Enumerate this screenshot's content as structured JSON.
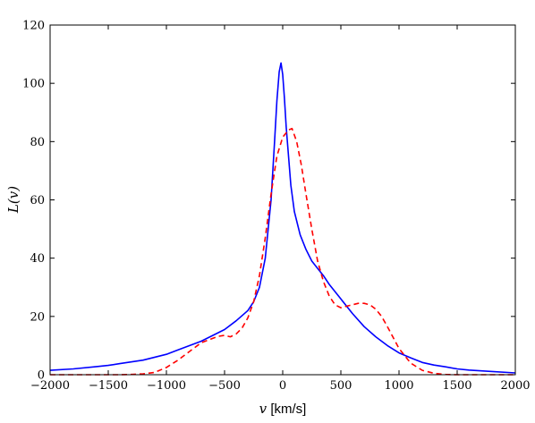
{
  "chart_data": {
    "type": "line",
    "xlabel": "v [km/s]",
    "xlabel_var": "v",
    "xlabel_unit": " [km/s]",
    "ylabel": "L(v)",
    "xlim": [
      -2000,
      2000
    ],
    "ylim": [
      0,
      120
    ],
    "xticks": [
      -2000,
      -1500,
      -1000,
      -500,
      0,
      500,
      1000,
      1500,
      2000
    ],
    "xtick_labels": [
      "−2000",
      "−1500",
      "−1000",
      "−500",
      "0",
      "500",
      "1000",
      "1500",
      "2000"
    ],
    "yticks": [
      0,
      20,
      40,
      60,
      80,
      100,
      120
    ],
    "ytick_labels": [
      "0",
      "20",
      "40",
      "60",
      "80",
      "100",
      "120"
    ],
    "grid": false,
    "legend": "none",
    "series": [
      {
        "color": "#0000ff",
        "dash": "solid",
        "x": [
          -2000,
          -1800,
          -1600,
          -1500,
          -1400,
          -1200,
          -1000,
          -900,
          -800,
          -700,
          -600,
          -500,
          -400,
          -300,
          -250,
          -200,
          -150,
          -100,
          -70,
          -50,
          -30,
          -15,
          0,
          15,
          30,
          50,
          70,
          100,
          150,
          200,
          250,
          300,
          350,
          400,
          500,
          600,
          700,
          800,
          900,
          1000,
          1100,
          1200,
          1300,
          1400,
          1500,
          1600,
          1800,
          2000
        ],
        "y": [
          1.5,
          2,
          2.8,
          3.2,
          3.8,
          5,
          7,
          8.5,
          10,
          11.5,
          13.5,
          15.5,
          18.5,
          22,
          25,
          30,
          40,
          60,
          80,
          94,
          104,
          107,
          103,
          95,
          85,
          75,
          65,
          56,
          48,
          43,
          39,
          36.5,
          34,
          31,
          26,
          21,
          16.5,
          13,
          10,
          7.5,
          5.8,
          4.2,
          3.3,
          2.7,
          2,
          1.6,
          1.1,
          0.6
        ]
      },
      {
        "color": "#ff0000",
        "dash": "dashed",
        "x": [
          -2000,
          -1400,
          -1300,
          -1200,
          -1100,
          -1000,
          -900,
          -800,
          -700,
          -600,
          -550,
          -500,
          -450,
          -400,
          -350,
          -300,
          -250,
          -200,
          -150,
          -100,
          -50,
          0,
          50,
          80,
          120,
          160,
          200,
          250,
          300,
          350,
          400,
          450,
          500,
          550,
          600,
          650,
          700,
          750,
          800,
          850,
          900,
          1000,
          1100,
          1200,
          1300,
          1400,
          1500,
          2000
        ],
        "y": [
          0,
          0,
          0.1,
          0.3,
          0.8,
          2.5,
          5,
          8,
          11,
          12.5,
          13.2,
          13.5,
          13,
          14,
          16,
          19.5,
          25,
          34,
          47,
          62,
          75,
          81.5,
          84,
          84.5,
          80,
          72,
          62,
          50,
          39,
          32,
          27,
          24,
          23,
          23.5,
          24,
          24.5,
          24.5,
          24,
          22.5,
          20,
          16.5,
          9,
          4,
          1.5,
          0.5,
          0.1,
          0,
          0
        ]
      }
    ]
  }
}
